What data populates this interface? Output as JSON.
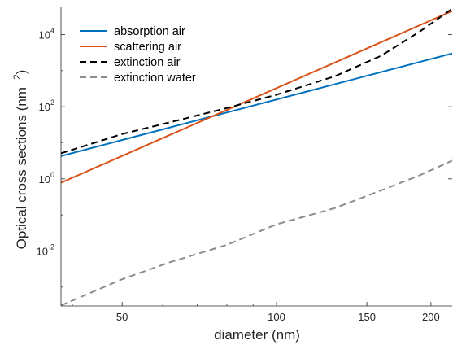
{
  "chart_data": {
    "type": "line",
    "xlabel": "diameter (nm)",
    "ylabel": "Optical cross sections (nm",
    "ylabel_superscript": "2",
    "ylabel_close": ")",
    "xscale": "log",
    "yscale": "log",
    "xlim": [
      38,
      220
    ],
    "ylim": [
      0.0003,
      60000
    ],
    "xticks": [
      {
        "value": 50,
        "label": "50"
      },
      {
        "value": 100,
        "label": "100"
      },
      {
        "value": 150,
        "label": "150"
      },
      {
        "value": 200,
        "label": "200"
      }
    ],
    "yticks": [
      {
        "value": 0.01,
        "base": "10",
        "exp": "-2"
      },
      {
        "value": 1,
        "base": "10",
        "exp": "0"
      },
      {
        "value": 100,
        "base": "10",
        "exp": "2"
      },
      {
        "value": 10000,
        "base": "10",
        "exp": "4"
      }
    ],
    "grid": false,
    "legend_position": "top-left",
    "series": [
      {
        "name": "absorption air",
        "color": "#0072bd",
        "dash": "solid",
        "x": [
          38,
          220
        ],
        "y": [
          4.3,
          3000
        ]
      },
      {
        "name": "scattering air",
        "color": "#d95319",
        "dash": "solid",
        "x": [
          38,
          220
        ],
        "y": [
          0.78,
          45000
        ]
      },
      {
        "name": "extinction air",
        "color": "#000000",
        "dash": "dashed",
        "x": [
          38,
          50,
          62,
          80,
          100,
          130,
          160,
          190,
          220
        ],
        "y": [
          5.1,
          17.5,
          37,
          92,
          215,
          700,
          2600,
          12000,
          52000
        ]
      },
      {
        "name": "extinction water",
        "color": "#8c8c8c",
        "dash": "dashed",
        "x": [
          38,
          50,
          62,
          80,
          100,
          130,
          160,
          190,
          220
        ],
        "y": [
          0.00031,
          0.00165,
          0.0049,
          0.0148,
          0.055,
          0.155,
          0.48,
          1.25,
          3.2
        ]
      }
    ]
  }
}
